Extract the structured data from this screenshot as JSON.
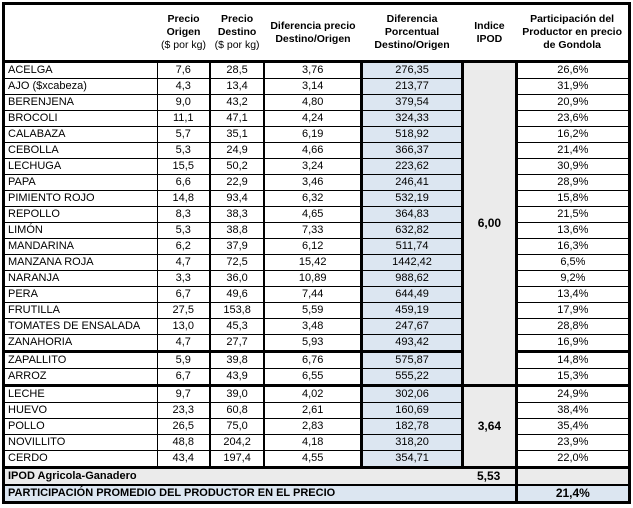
{
  "header": {
    "product": "",
    "origin": [
      "Precio",
      "Origen",
      "($ por kg)"
    ],
    "destination": [
      "Precio",
      "Destino",
      "($ por kg)"
    ],
    "diff_price": [
      "Diferencia precio",
      "Destino/Origen"
    ],
    "diff_pct": [
      "Diferencia",
      "Porcentual",
      "Destino/Origen"
    ],
    "ipod": [
      "Indice",
      "IPOD"
    ],
    "participation": [
      "Participación del",
      "Productor en precio",
      "de Gondola"
    ]
  },
  "sections": [
    {
      "name": "agricola",
      "ipod_value": "6,00",
      "rows": [
        {
          "product": "ACELGA",
          "origin": "7,6",
          "destination": "28,5",
          "diff_price": "3,76",
          "diff_pct": "276,35",
          "participation": "26,6%"
        },
        {
          "product": "AJO ($xcabeza)",
          "origin": "4,3",
          "destination": "13,4",
          "diff_price": "3,14",
          "diff_pct": "213,77",
          "participation": "31,9%"
        },
        {
          "product": "BERENJENA",
          "origin": "9,0",
          "destination": "43,2",
          "diff_price": "4,80",
          "diff_pct": "379,54",
          "participation": "20,9%"
        },
        {
          "product": "BROCOLI",
          "origin": "11,1",
          "destination": "47,1",
          "diff_price": "4,24",
          "diff_pct": "324,33",
          "participation": "23,6%"
        },
        {
          "product": "CALABAZA",
          "origin": "5,7",
          "destination": "35,1",
          "diff_price": "6,19",
          "diff_pct": "518,92",
          "participation": "16,2%"
        },
        {
          "product": "CEBOLLA",
          "origin": "5,3",
          "destination": "24,9",
          "diff_price": "4,66",
          "diff_pct": "366,37",
          "participation": "21,4%"
        },
        {
          "product": "LECHUGA",
          "origin": "15,5",
          "destination": "50,2",
          "diff_price": "3,24",
          "diff_pct": "223,62",
          "participation": "30,9%"
        },
        {
          "product": "PAPA",
          "origin": "6,6",
          "destination": "22,9",
          "diff_price": "3,46",
          "diff_pct": "246,41",
          "participation": "28,9%"
        },
        {
          "product": "PIMIENTO ROJO",
          "origin": "14,8",
          "destination": "93,4",
          "diff_price": "6,32",
          "diff_pct": "532,19",
          "participation": "15,8%"
        },
        {
          "product": "REPOLLO",
          "origin": "8,3",
          "destination": "38,3",
          "diff_price": "4,65",
          "diff_pct": "364,83",
          "participation": "21,5%"
        },
        {
          "product": "LIMÓN",
          "origin": "5,3",
          "destination": "38,8",
          "diff_price": "7,33",
          "diff_pct": "632,82",
          "participation": "13,6%"
        },
        {
          "product": "MANDARINA",
          "origin": "6,2",
          "destination": "37,9",
          "diff_price": "6,12",
          "diff_pct": "511,74",
          "participation": "16,3%"
        },
        {
          "product": "MANZANA ROJA",
          "origin": "4,7",
          "destination": "72,5",
          "diff_price": "15,42",
          "diff_pct": "1442,42",
          "participation": "6,5%"
        },
        {
          "product": "NARANJA",
          "origin": "3,3",
          "destination": "36,0",
          "diff_price": "10,89",
          "diff_pct": "988,62",
          "participation": "9,2%"
        },
        {
          "product": "PERA",
          "origin": "6,7",
          "destination": "49,6",
          "diff_price": "7,44",
          "diff_pct": "644,49",
          "participation": "13,4%"
        },
        {
          "product": "FRUTILLA",
          "origin": "27,5",
          "destination": "153,8",
          "diff_price": "5,59",
          "diff_pct": "459,19",
          "participation": "17,9%"
        },
        {
          "product": "TOMATES DE ENSALADA",
          "origin": "13,0",
          "destination": "45,3",
          "diff_price": "3,48",
          "diff_pct": "247,67",
          "participation": "28,8%"
        },
        {
          "product": "ZANAHORIA",
          "origin": "4,7",
          "destination": "27,7",
          "diff_price": "5,93",
          "diff_pct": "493,42",
          "participation": "16,9%",
          "thick_bottom": true
        },
        {
          "product": "ZAPALLITO",
          "origin": "5,9",
          "destination": "39,8",
          "diff_price": "6,76",
          "diff_pct": "575,87",
          "participation": "14,8%"
        },
        {
          "product": "ARROZ",
          "origin": "6,7",
          "destination": "43,9",
          "diff_price": "6,55",
          "diff_pct": "555,22",
          "participation": "15,3%"
        }
      ]
    },
    {
      "name": "ganadero",
      "ipod_value": "3,64",
      "rows": [
        {
          "product": "LECHE",
          "origin": "9,7",
          "destination": "39,0",
          "diff_price": "4,02",
          "diff_pct": "302,06",
          "participation": "24,9%"
        },
        {
          "product": "HUEVO",
          "origin": "23,3",
          "destination": "60,8",
          "diff_price": "2,61",
          "diff_pct": "160,69",
          "participation": "38,4%"
        },
        {
          "product": "POLLO",
          "origin": "26,5",
          "destination": "75,0",
          "diff_price": "2,83",
          "diff_pct": "182,78",
          "participation": "35,4%"
        },
        {
          "product": "NOVILLITO",
          "origin": "48,8",
          "destination": "204,2",
          "diff_price": "4,18",
          "diff_pct": "318,20",
          "participation": "23,9%"
        },
        {
          "product": "CERDO",
          "origin": "43,4",
          "destination": "197,4",
          "diff_price": "4,55",
          "diff_pct": "354,71",
          "participation": "22,0%"
        }
      ]
    }
  ],
  "summary": {
    "ipod_total_label": "IPOD Agricola-Ganadero",
    "ipod_total_value": "5,53",
    "participation_label": "PARTICIPACIÓN PROMEDIO DEL PRODUCTOR EN EL PRECIO",
    "participation_value": "21,4%"
  },
  "colors": {
    "pct_fill": "#DCE6F1",
    "ipod_fill": "#EBEBEB",
    "border": "#000000"
  }
}
